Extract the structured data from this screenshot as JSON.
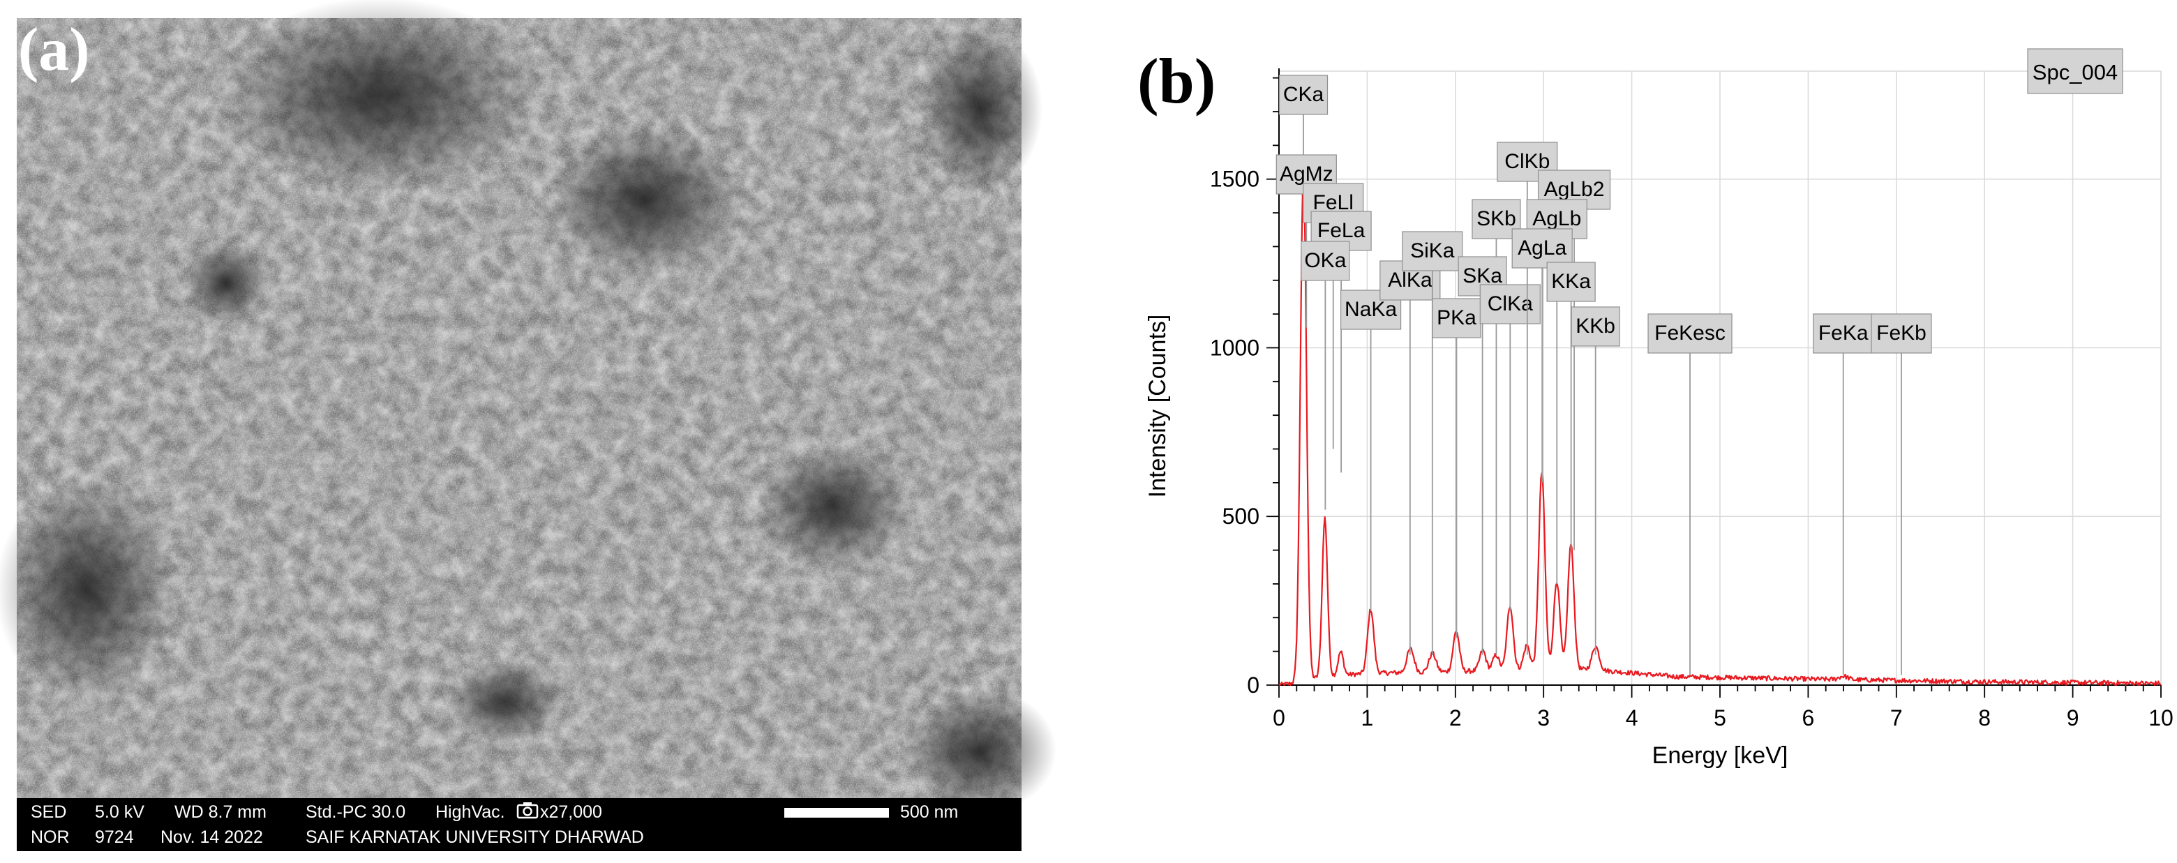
{
  "panel_a": {
    "label": "(a)",
    "info_row1": [
      "SED",
      "5.0 kV",
      "WD 8.7 mm",
      "Std.-PC 30.0",
      "HighVac.",
      "x27,000"
    ],
    "info_row2": [
      "NOR",
      "9724",
      "Nov. 14 2022",
      "SAIF KARNATAK UNIVERSITY DHARWAD"
    ],
    "scale_label": "500 nm",
    "camera_icon": "camera-icon"
  },
  "panel_b": {
    "label": "(b)"
  },
  "chart_data": {
    "type": "line",
    "title": "",
    "spectrum_label": "Spc_004",
    "xlabel": "Energy [keV]",
    "ylabel": "Intensity [Counts]",
    "xlim": [
      0,
      10
    ],
    "ylim": [
      0,
      1820
    ],
    "xticks": [
      0,
      1,
      2,
      3,
      4,
      5,
      6,
      7,
      8,
      9,
      10
    ],
    "yticks": [
      0,
      500,
      1000,
      1500
    ],
    "grid": true,
    "line_color": "#e8191f",
    "series": [
      {
        "peaks": [
          {
            "x": 0.277,
            "y": 1500,
            "w": 0.035
          },
          {
            "x": 0.52,
            "y": 470,
            "w": 0.03
          },
          {
            "x": 0.7,
            "y": 70,
            "w": 0.03
          },
          {
            "x": 1.04,
            "y": 190,
            "w": 0.035
          },
          {
            "x": 1.49,
            "y": 70,
            "w": 0.04
          },
          {
            "x": 1.74,
            "y": 55,
            "w": 0.04
          },
          {
            "x": 2.01,
            "y": 120,
            "w": 0.035
          },
          {
            "x": 2.31,
            "y": 60,
            "w": 0.035
          },
          {
            "x": 2.46,
            "y": 45,
            "w": 0.035
          },
          {
            "x": 2.62,
            "y": 190,
            "w": 0.035
          },
          {
            "x": 2.81,
            "y": 70,
            "w": 0.035
          },
          {
            "x": 2.98,
            "y": 580,
            "w": 0.035
          },
          {
            "x": 3.15,
            "y": 260,
            "w": 0.035
          },
          {
            "x": 3.31,
            "y": 370,
            "w": 0.035
          },
          {
            "x": 3.59,
            "y": 70,
            "w": 0.04
          },
          {
            "x": 6.4,
            "y": 10,
            "w": 0.05
          }
        ],
        "baseline_points": [
          [
            0,
            0
          ],
          [
            0.15,
            5
          ],
          [
            0.5,
            25
          ],
          [
            1.0,
            35
          ],
          [
            2.0,
            40
          ],
          [
            3.0,
            50
          ],
          [
            3.6,
            45
          ],
          [
            4.5,
            25
          ],
          [
            6,
            18
          ],
          [
            8,
            10
          ],
          [
            10,
            5
          ]
        ]
      }
    ],
    "annotations": [
      {
        "label": "CKa",
        "x": 0.277
      },
      {
        "label": "AgMz",
        "x": 0.311
      },
      {
        "label": "FeLl",
        "x": 0.615
      },
      {
        "label": "FeLa",
        "x": 0.705
      },
      {
        "label": "OKa",
        "x": 0.525
      },
      {
        "label": "NaKa",
        "x": 1.041
      },
      {
        "label": "AlKa",
        "x": 1.486
      },
      {
        "label": "SiKa",
        "x": 1.739
      },
      {
        "label": "PKa",
        "x": 2.013
      },
      {
        "label": "SKb",
        "x": 2.464
      },
      {
        "label": "SKa",
        "x": 2.307
      },
      {
        "label": "ClKa",
        "x": 2.621
      },
      {
        "label": "ClKb",
        "x": 2.815
      },
      {
        "label": "AgLb2",
        "x": 3.347
      },
      {
        "label": "AgLb",
        "x": 3.151
      },
      {
        "label": "AgLa",
        "x": 2.984
      },
      {
        "label": "KKa",
        "x": 3.312
      },
      {
        "label": "KKb",
        "x": 3.589
      },
      {
        "label": "FeKesc",
        "x": 4.66
      },
      {
        "label": "FeKa",
        "x": 6.398
      },
      {
        "label": "FeKb",
        "x": 7.057
      }
    ]
  }
}
